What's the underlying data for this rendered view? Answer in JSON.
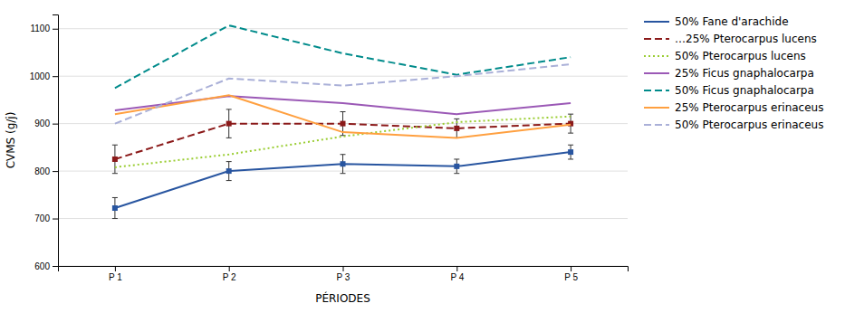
{
  "chart_data": {
    "type": "line",
    "x": [
      1,
      2,
      3,
      4,
      5
    ],
    "xlim": [
      0.5,
      5.5
    ],
    "xticks": [
      {
        "value": 1,
        "label": "P 1"
      },
      {
        "value": 2,
        "label": "P 2"
      },
      {
        "value": 3,
        "label": "P 3"
      },
      {
        "value": 4,
        "label": "P 4"
      },
      {
        "value": 5,
        "label": "P 5"
      }
    ],
    "ylim": [
      600,
      1130
    ],
    "yticks": [
      600,
      700,
      800,
      900,
      1000,
      1100
    ],
    "xlabel": "PÉRIODES",
    "ylabel": "CVMS (g/j)",
    "grid": true,
    "legend": "right",
    "series": [
      {
        "name": "50% Fane d'arachide",
        "color": "#2855a0",
        "line_style": "solid",
        "marker": "square",
        "values": [
          722,
          800,
          815,
          810,
          840
        ],
        "errors": [
          22,
          20,
          20,
          15,
          15
        ]
      },
      {
        "name": "…25% Pterocarpus lucens",
        "color": "#8b1a1a",
        "line_style": "dashed",
        "marker": "square",
        "values": [
          825,
          900,
          900,
          890,
          900
        ],
        "errors": [
          30,
          30,
          25,
          20,
          20
        ]
      },
      {
        "name": "50% Pterocarpus lucens",
        "color": "#9acd32",
        "line_style": "dotted",
        "values": [
          808,
          835,
          873,
          903,
          915
        ]
      },
      {
        "name": "25% Ficus gnaphalocarpa",
        "color": "#9b59b6",
        "line_style": "solid",
        "values": [
          928,
          958,
          943,
          920,
          943
        ]
      },
      {
        "name": "50% Ficus gnaphalocarpa",
        "color": "#008b8b",
        "line_style": "dashed",
        "values": [
          975,
          1107,
          1048,
          1003,
          1040
        ]
      },
      {
        "name": "25% Pterocarpus erinaceus",
        "color": "#ffa040",
        "line_style": "solid",
        "values": [
          920,
          960,
          882,
          870,
          898
        ]
      },
      {
        "name": "50% Pterocarpus erinaceus",
        "color": "#aab0d8",
        "line_style": "dashed",
        "values": [
          900,
          995,
          980,
          1000,
          1025
        ]
      }
    ]
  }
}
